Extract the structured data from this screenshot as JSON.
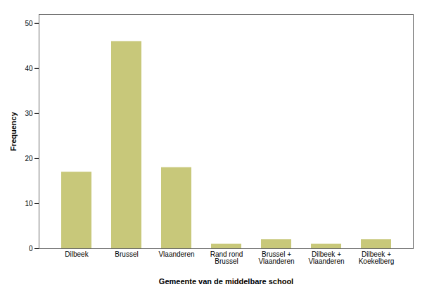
{
  "chart_data": {
    "type": "bar",
    "categories": [
      "Dilbeek",
      "Brussel",
      "Vlaanderen",
      "Rand rond\nBrussel",
      "Brussel +\nVlaanderen",
      "Dilbeek +\nVlaanderen",
      "Dilbeek +\nKoekelberg"
    ],
    "values": [
      17,
      46,
      18,
      1,
      2,
      1,
      2
    ],
    "color": "#c8c87a",
    "xlabel": "Gemeente van de middelbare school",
    "ylabel": "Frequency",
    "ylim": [
      0,
      52
    ],
    "yticks": [
      0,
      10,
      20,
      30,
      40,
      50
    ],
    "grid": false
  }
}
